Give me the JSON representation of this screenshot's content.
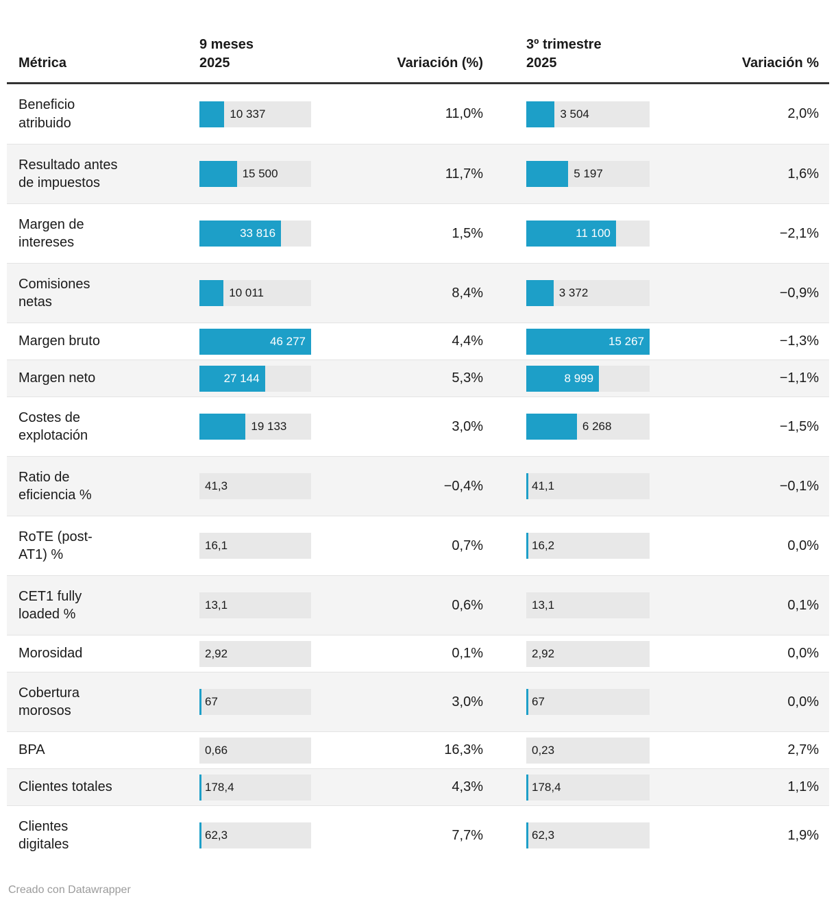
{
  "header": {
    "metric": "Métrica",
    "period1": "9 meses\n2025",
    "variation1": "Variación (%)",
    "period2": "3º trimestre\n2025",
    "variation2": "Variación %"
  },
  "columns": {
    "bar1_max": 46277,
    "bar2_max": 15267
  },
  "colors": {
    "bar_blue": "#1d9fc8",
    "bar_track": "#e8e8e8",
    "zebra_row": "#f4f4f4",
    "header_border": "#333333",
    "row_border": "#e3e3e3",
    "credit_text": "#9b9b9b"
  },
  "rows": [
    {
      "label": "Beneficio\natribuido",
      "bar1": {
        "num": 10337,
        "text": "10 337",
        "pos": "out",
        "tick": false
      },
      "var1": "11,0%",
      "bar2": {
        "num": 3504,
        "text": "3 504",
        "pos": "out",
        "tick": false
      },
      "var2": "2,0%"
    },
    {
      "label": "Resultado antes\nde impuestos",
      "bar1": {
        "num": 15500,
        "text": "15 500",
        "pos": "out",
        "tick": false
      },
      "var1": "11,7%",
      "bar2": {
        "num": 5197,
        "text": "5 197",
        "pos": "out",
        "tick": false
      },
      "var2": "1,6%"
    },
    {
      "label": "Margen de\nintereses",
      "bar1": {
        "num": 33816,
        "text": "33 816",
        "pos": "in",
        "tick": false
      },
      "var1": "1,5%",
      "bar2": {
        "num": 11100,
        "text": "11 100",
        "pos": "in",
        "tick": false
      },
      "var2": "−2,1%"
    },
    {
      "label": "Comisiones\nnetas",
      "bar1": {
        "num": 10011,
        "text": "10 011",
        "pos": "out",
        "tick": false
      },
      "var1": "8,4%",
      "bar2": {
        "num": 3372,
        "text": "3 372",
        "pos": "out",
        "tick": false
      },
      "var2": "−0,9%"
    },
    {
      "label": "Margen bruto",
      "bar1": {
        "num": 46277,
        "text": "46 277",
        "pos": "in",
        "tick": false
      },
      "var1": "4,4%",
      "bar2": {
        "num": 15267,
        "text": "15 267",
        "pos": "in",
        "tick": false
      },
      "var2": "−1,3%"
    },
    {
      "label": "Margen neto",
      "bar1": {
        "num": 27144,
        "text": "27 144",
        "pos": "in",
        "tick": false
      },
      "var1": "5,3%",
      "bar2": {
        "num": 8999,
        "text": "8 999",
        "pos": "in",
        "tick": false
      },
      "var2": "−1,1%"
    },
    {
      "label": "Costes de\nexplotación",
      "bar1": {
        "num": 19133,
        "text": "19 133",
        "pos": "out",
        "tick": false
      },
      "var1": "3,0%",
      "bar2": {
        "num": 6268,
        "text": "6 268",
        "pos": "out",
        "tick": false
      },
      "var2": "−1,5%"
    },
    {
      "label": "Ratio de\neficiencia %",
      "bar1": {
        "num": 41.3,
        "text": "41,3",
        "pos": "left",
        "tick": false
      },
      "var1": "−0,4%",
      "bar2": {
        "num": 41.1,
        "text": "41,1",
        "pos": "left",
        "tick": true
      },
      "var2": "−0,1%"
    },
    {
      "label": "RoTE (post-\nAT1) %",
      "bar1": {
        "num": 16.1,
        "text": "16,1",
        "pos": "left",
        "tick": false
      },
      "var1": "0,7%",
      "bar2": {
        "num": 16.2,
        "text": "16,2",
        "pos": "left",
        "tick": true
      },
      "var2": "0,0%"
    },
    {
      "label": "CET1 fully\nloaded %",
      "bar1": {
        "num": 13.1,
        "text": "13,1",
        "pos": "left",
        "tick": false
      },
      "var1": "0,6%",
      "bar2": {
        "num": 13.1,
        "text": "13,1",
        "pos": "left",
        "tick": false
      },
      "var2": "0,1%"
    },
    {
      "label": "Morosidad",
      "bar1": {
        "num": 2.92,
        "text": "2,92",
        "pos": "left",
        "tick": false
      },
      "var1": "0,1%",
      "bar2": {
        "num": 2.92,
        "text": "2,92",
        "pos": "left",
        "tick": false
      },
      "var2": "0,0%"
    },
    {
      "label": "Cobertura\nmorosos",
      "bar1": {
        "num": 67,
        "text": "67",
        "pos": "left",
        "tick": true
      },
      "var1": "3,0%",
      "bar2": {
        "num": 67,
        "text": "67",
        "pos": "left",
        "tick": true
      },
      "var2": "0,0%"
    },
    {
      "label": "BPA",
      "bar1": {
        "num": 0.66,
        "text": "0,66",
        "pos": "left",
        "tick": false
      },
      "var1": "16,3%",
      "bar2": {
        "num": 0.23,
        "text": "0,23",
        "pos": "left",
        "tick": false
      },
      "var2": "2,7%"
    },
    {
      "label": "Clientes totales",
      "bar1": {
        "num": 178.4,
        "text": "178,4",
        "pos": "left",
        "tick": true
      },
      "var1": "4,3%",
      "bar2": {
        "num": 178.4,
        "text": "178,4",
        "pos": "left",
        "tick": true
      },
      "var2": "1,1%"
    },
    {
      "label": "Clientes\ndigitales",
      "bar1": {
        "num": 62.3,
        "text": "62,3",
        "pos": "left",
        "tick": true
      },
      "var1": "7,7%",
      "bar2": {
        "num": 62.3,
        "text": "62,3",
        "pos": "left",
        "tick": true
      },
      "var2": "1,9%"
    }
  ],
  "footer": {
    "credit": "Creado con Datawrapper"
  },
  "chart_data": {
    "type": "table",
    "title": "",
    "columns": [
      "Métrica",
      "9 meses 2025",
      "Variación (%)",
      "3º trimestre 2025",
      "Variación %"
    ],
    "rows": [
      [
        "Beneficio atribuido",
        10337,
        "11,0%",
        3504,
        "2,0%"
      ],
      [
        "Resultado antes de impuestos",
        15500,
        "11,7%",
        5197,
        "1,6%"
      ],
      [
        "Margen de intereses",
        33816,
        "1,5%",
        11100,
        "−2,1%"
      ],
      [
        "Comisiones netas",
        10011,
        "8,4%",
        3372,
        "−0,9%"
      ],
      [
        "Margen bruto",
        46277,
        "4,4%",
        15267,
        "−1,3%"
      ],
      [
        "Margen neto",
        27144,
        "5,3%",
        8999,
        "−1,1%"
      ],
      [
        "Costes de explotación",
        19133,
        "3,0%",
        6268,
        "−1,5%"
      ],
      [
        "Ratio de eficiencia %",
        41.3,
        "−0,4%",
        41.1,
        "−0,1%"
      ],
      [
        "RoTE (post-AT1) %",
        16.1,
        "0,7%",
        16.2,
        "0,0%"
      ],
      [
        "CET1 fully loaded %",
        13.1,
        "0,6%",
        13.1,
        "0,1%"
      ],
      [
        "Morosidad",
        2.92,
        "0,1%",
        2.92,
        "0,0%"
      ],
      [
        "Cobertura morosos",
        67,
        "3,0%",
        67,
        "0,0%"
      ],
      [
        "BPA",
        0.66,
        "16,3%",
        0.23,
        "2,7%"
      ],
      [
        "Clientes totales",
        178.4,
        "4,3%",
        178.4,
        "1,1%"
      ],
      [
        "Clientes digitales",
        62.3,
        "7,7%",
        62.3,
        "1,9%"
      ]
    ],
    "bar_embedded_columns": {
      "9 meses 2025": {
        "axis_max": 46277
      },
      "3º trimestre 2025": {
        "axis_max": 15267
      }
    },
    "legend": "none",
    "grid": "off"
  }
}
